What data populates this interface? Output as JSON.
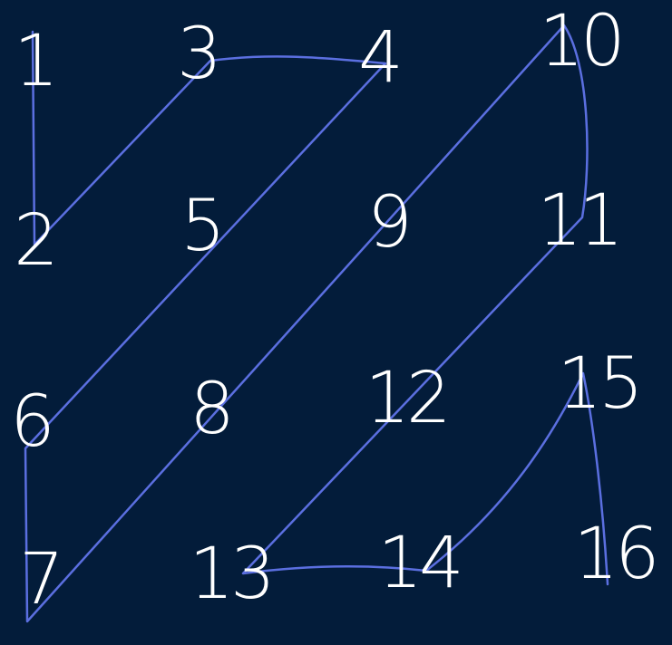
{
  "canvas": {
    "background": "#031c3a"
  },
  "style": {
    "number_color": "#ffffff",
    "path_color": "#5b6fe0"
  },
  "numbers": [
    {
      "label": "1"
    },
    {
      "label": "2"
    },
    {
      "label": "3"
    },
    {
      "label": "4"
    },
    {
      "label": "5"
    },
    {
      "label": "6"
    },
    {
      "label": "7"
    },
    {
      "label": "8"
    },
    {
      "label": "9"
    },
    {
      "label": "10"
    },
    {
      "label": "11"
    },
    {
      "label": "12"
    },
    {
      "label": "13"
    },
    {
      "label": "14"
    },
    {
      "label": "15"
    },
    {
      "label": "16"
    }
  ],
  "path_order": [
    "1",
    "2",
    "3",
    "4",
    "6",
    "7",
    "8",
    "9",
    "10",
    "11",
    "13",
    "14",
    "15",
    "16"
  ]
}
